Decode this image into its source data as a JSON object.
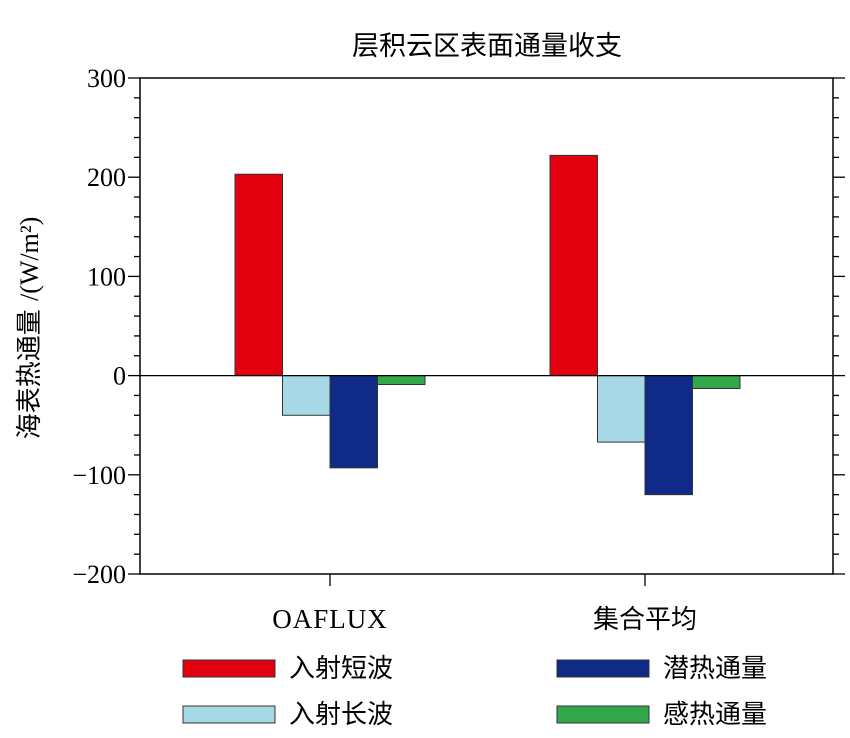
{
  "chart_data": {
    "type": "bar",
    "title": "层积云区表面通量收支",
    "ylabel_main": "海表热通量",
    "ylabel_unit": "/(W/m²)",
    "ylim": [
      -200,
      300
    ],
    "yticks": [
      300,
      200,
      100,
      0,
      -100,
      -200
    ],
    "ytick_labels": [
      "300",
      "200",
      "100",
      "0",
      "−100",
      "−200"
    ],
    "categories": [
      "OAFLUX",
      "集合平均"
    ],
    "series": [
      {
        "name": "入射短波",
        "color": "#e3000f",
        "values": [
          203,
          222
        ]
      },
      {
        "name": "入射长波",
        "color": "#a6d8e6",
        "values": [
          -40,
          -67
        ]
      },
      {
        "name": "潜热通量",
        "color": "#0f2a87",
        "values": [
          -93,
          -120
        ]
      },
      {
        "name": "感热通量",
        "color": "#33a84a",
        "values": [
          -9,
          -13
        ]
      }
    ],
    "legend_position": "bottom",
    "grid": false
  }
}
